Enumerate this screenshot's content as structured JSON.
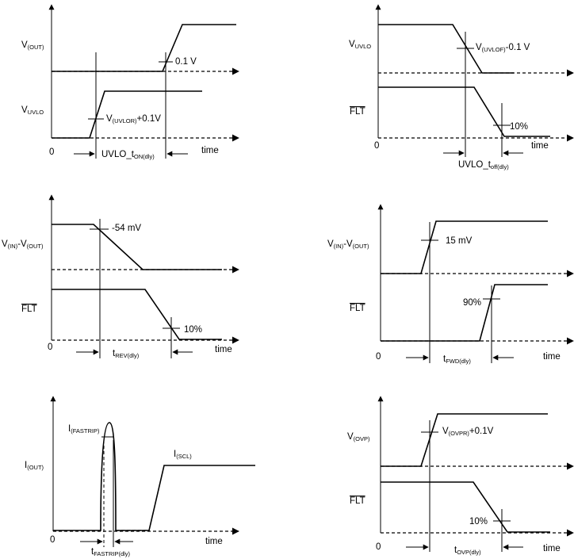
{
  "common": {
    "time": "time",
    "zero": "0",
    "flt": "FLT"
  },
  "d1": {
    "vout": {
      "main": "V",
      "sub": "(OUT)"
    },
    "vuvlo": {
      "main": "V",
      "sub": "UVLO"
    },
    "ann_01v": "0.1 V",
    "ann_uvlor": {
      "main": "V",
      "sub": "(UVLOR)",
      "rest": "+0.1V"
    },
    "delay": {
      "main": "UVLO_t",
      "sub": "ON(dly)"
    }
  },
  "d2": {
    "vuvlo": {
      "main": "V",
      "sub": "UVLO"
    },
    "ann_uvlof": {
      "main": "V",
      "sub": "(UVLOF)",
      "rest": "-0.1 V"
    },
    "ann_10": "10%",
    "delay": {
      "main": "UVLO_t",
      "sub": "off(dly)"
    }
  },
  "d3": {
    "vinvout": {
      "m1": "V",
      "s1": "(IN)",
      "m2": "-V",
      "s2": "(OUT)"
    },
    "ann_54": "-54 mV",
    "ann_10": "10%",
    "delay": {
      "main": "t",
      "sub": "REV(dly)"
    }
  },
  "d4": {
    "vinvout": {
      "m1": "V",
      "s1": "(IN)",
      "m2": "-V",
      "s2": "(OUT)"
    },
    "ann_15": "15 mV",
    "ann_90": "90%",
    "delay": {
      "main": "t",
      "sub": "FWD(dly)"
    }
  },
  "d5": {
    "iout": {
      "main": "I",
      "sub": "(OUT)"
    },
    "ifast": {
      "main": "I",
      "sub": "(FASTRIP)"
    },
    "iscl": {
      "main": "I",
      "sub": "(SCL)"
    },
    "delay": {
      "main": "t",
      "sub": "FASTRIP(dly)"
    }
  },
  "d6": {
    "vovp": {
      "main": "V",
      "sub": "(OVP)"
    },
    "ann_ovpr": {
      "main": "V",
      "sub": "(OVPR)",
      "rest": "+0.1V"
    },
    "ann_10": "10%",
    "delay": {
      "main": "t",
      "sub": "OVP(dly)"
    }
  }
}
